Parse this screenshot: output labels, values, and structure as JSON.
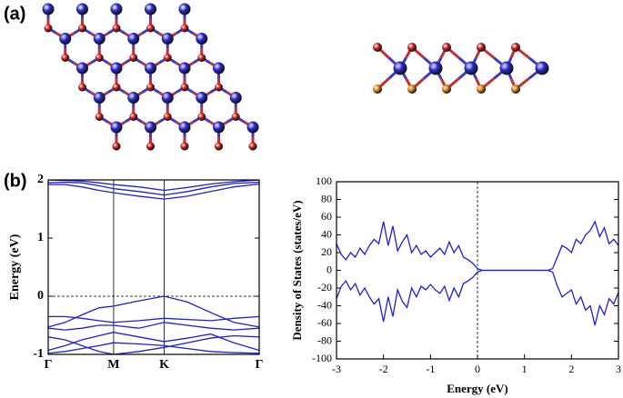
{
  "panel_labels": [
    "(a)",
    "(b)"
  ],
  "chart_data": [
    {
      "type": "line",
      "ylabel": "Energy (eV)",
      "x": [
        0,
        0.08,
        0.16,
        0.24,
        0.31,
        0.43,
        0.55,
        0.66,
        0.77,
        0.88,
        1
      ],
      "xlim": [
        0,
        1
      ],
      "xticks": [
        {
          "value": 0,
          "label": "Γ"
        },
        {
          "value": 0.31,
          "label": "M"
        },
        {
          "value": 0.55,
          "label": "K"
        },
        {
          "value": 1,
          "label": "Γ"
        }
      ],
      "xgrid": true,
      "ylim": [
        -1,
        2
      ],
      "yticks": [
        -1,
        0,
        1,
        2
      ],
      "hline": 0,
      "series": [
        {
          "color": "#1f1fd6",
          "values": [
            1.92,
            1.92,
            1.88,
            1.82,
            1.78,
            1.72,
            1.67,
            1.72,
            1.8,
            1.88,
            1.93
          ]
        },
        {
          "color": "#1f1fd6",
          "values": [
            1.95,
            1.96,
            1.95,
            1.9,
            1.85,
            1.8,
            1.74,
            1.8,
            1.88,
            1.94,
            1.96
          ]
        },
        {
          "color": "#1f1fd6",
          "values": [
            2,
            1.99,
            1.98,
            1.95,
            1.92,
            1.88,
            1.82,
            1.87,
            1.93,
            1.97,
            2
          ]
        },
        {
          "color": "#1f1fd6",
          "values": [
            -0.53,
            -0.45,
            -0.32,
            -0.2,
            -0.17,
            -0.08,
            0,
            -0.1,
            -0.28,
            -0.45,
            -0.53
          ]
        },
        {
          "color": "#1f1fd6",
          "values": [
            -0.35,
            -0.35,
            -0.38,
            -0.42,
            -0.45,
            -0.42,
            -0.38,
            -0.4,
            -0.42,
            -0.38,
            -0.35
          ]
        },
        {
          "color": "#1f1fd6",
          "values": [
            -0.55,
            -0.58,
            -0.55,
            -0.5,
            -0.5,
            -0.55,
            -0.45,
            -0.5,
            -0.55,
            -0.58,
            -0.55
          ]
        },
        {
          "color": "#1f1fd6",
          "values": [
            -0.93,
            -0.85,
            -0.75,
            -0.68,
            -0.62,
            -0.7,
            -0.78,
            -0.72,
            -0.65,
            -0.8,
            -0.93
          ]
        },
        {
          "color": "#1f1fd6",
          "values": [
            -0.98,
            -0.95,
            -0.9,
            -0.85,
            -0.8,
            -0.82,
            -0.85,
            -0.9,
            -0.95,
            -0.97,
            -0.98
          ]
        },
        {
          "color": "#1f1fd6",
          "values": [
            -0.7,
            -0.75,
            -0.85,
            -0.95,
            -1,
            -0.95,
            -0.88,
            -0.8,
            -0.72,
            -0.68,
            -0.7
          ]
        }
      ]
    },
    {
      "type": "line",
      "xlabel": "Energy (eV)",
      "ylabel": "Density of States (states/eV)",
      "x": [
        -3,
        -2.9,
        -2.8,
        -2.7,
        -2.6,
        -2.5,
        -2.4,
        -2.3,
        -2.2,
        -2.1,
        -2,
        -1.9,
        -1.8,
        -1.7,
        -1.6,
        -1.5,
        -1.4,
        -1.3,
        -1.2,
        -1.1,
        -1,
        -0.9,
        -0.8,
        -0.7,
        -0.6,
        -0.5,
        -0.4,
        -0.3,
        -0.2,
        -0.1,
        0,
        0.1,
        0.2,
        0.3,
        0.4,
        0.5,
        0.6,
        0.7,
        0.8,
        0.9,
        1,
        1.1,
        1.2,
        1.3,
        1.4,
        1.5,
        1.6,
        1.7,
        1.8,
        1.9,
        2,
        2.1,
        2.2,
        2.3,
        2.4,
        2.5,
        2.6,
        2.7,
        2.8,
        2.9,
        3
      ],
      "xlim": [
        -3,
        3
      ],
      "xticks": [
        -3,
        -2,
        -1,
        0,
        1,
        2,
        3
      ],
      "xgrid": false,
      "ylim": [
        -100,
        100
      ],
      "yticks": [
        -100,
        -80,
        -60,
        -40,
        -20,
        0,
        20,
        40,
        60,
        80,
        100
      ],
      "vline": 0,
      "series": [
        {
          "color": "#1f1fd6",
          "values": [
            30,
            18,
            12,
            20,
            15,
            25,
            18,
            28,
            35,
            30,
            55,
            28,
            50,
            22,
            32,
            40,
            20,
            28,
            18,
            22,
            15,
            20,
            25,
            18,
            32,
            20,
            28,
            15,
            12,
            8,
            2,
            0,
            0,
            0,
            0,
            0,
            0,
            0,
            0,
            0,
            0,
            0,
            0,
            0,
            0,
            0,
            2,
            15,
            28,
            25,
            20,
            35,
            30,
            40,
            45,
            55,
            38,
            48,
            30,
            35,
            28
          ]
        },
        {
          "color": "#1f1fd6",
          "values": [
            -32,
            -18,
            -12,
            -22,
            -15,
            -28,
            -20,
            -30,
            -38,
            -32,
            -58,
            -30,
            -52,
            -22,
            -35,
            -42,
            -20,
            -30,
            -18,
            -22,
            -16,
            -22,
            -26,
            -18,
            -34,
            -20,
            -30,
            -15,
            -12,
            -8,
            -2,
            0,
            0,
            0,
            0,
            0,
            0,
            0,
            0,
            0,
            0,
            0,
            0,
            0,
            0,
            0,
            -2,
            -18,
            -30,
            -26,
            -22,
            -38,
            -30,
            -45,
            -40,
            -62,
            -40,
            -50,
            -32,
            -38,
            -25
          ]
        }
      ]
    }
  ]
}
